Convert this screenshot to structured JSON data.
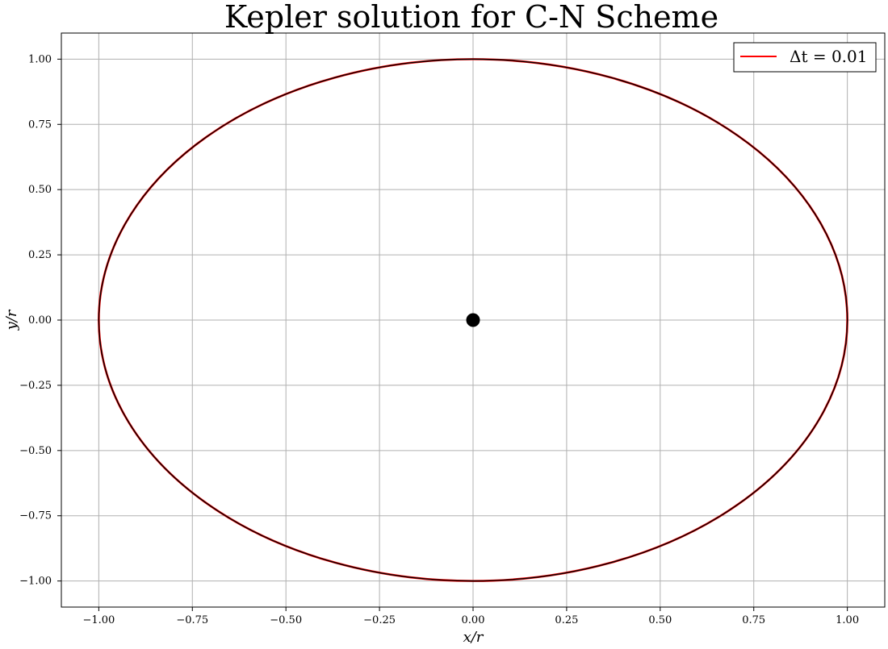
{
  "chart_data": {
    "type": "line",
    "title": "Kepler solution for C-N Scheme",
    "xlabel": "x/r",
    "ylabel": "y/r",
    "xlim": [
      -1.1,
      1.1
    ],
    "ylim": [
      -1.1,
      1.1
    ],
    "xticks": [
      -1.0,
      -0.75,
      -0.5,
      -0.25,
      0.0,
      0.25,
      0.5,
      0.75,
      1.0
    ],
    "yticks": [
      -1.0,
      -0.75,
      -0.5,
      -0.25,
      0.0,
      0.25,
      0.5,
      0.75,
      1.0
    ],
    "xtick_labels": [
      "−1.00",
      "−0.75",
      "−0.50",
      "−0.25",
      "0.00",
      "0.25",
      "0.50",
      "0.75",
      "1.00"
    ],
    "ytick_labels": [
      "−1.00",
      "−0.75",
      "−0.50",
      "−0.25",
      "0.00",
      "0.25",
      "0.50",
      "0.75",
      "1.00"
    ],
    "grid": true,
    "legend_position": "top-right",
    "series": [
      {
        "name": "Δt = 0.01",
        "color": "#ff0000",
        "shape": "circle",
        "center": [
          0.0,
          0.0
        ],
        "radius": 1.0
      },
      {
        "color": "#000000",
        "shape": "circle",
        "center": [
          0.0,
          0.0
        ],
        "radius": 1.0
      }
    ],
    "center_point": {
      "x": 0.0,
      "y": 0.0,
      "color": "#000000"
    }
  }
}
